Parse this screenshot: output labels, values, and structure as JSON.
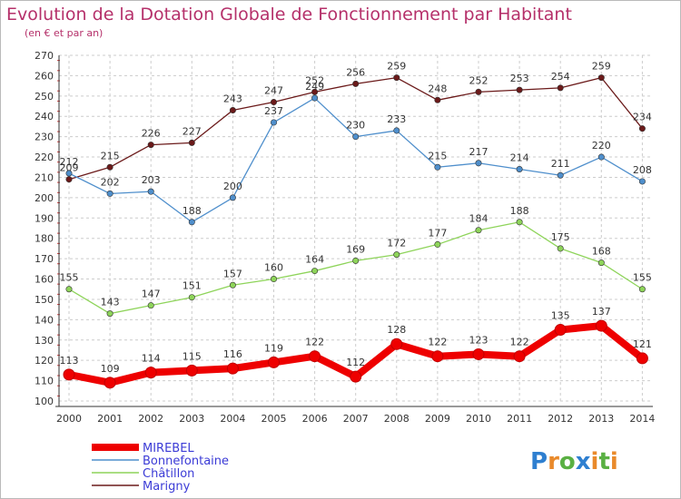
{
  "chart_data": {
    "type": "line",
    "title": "Evolution de la Dotation Globale de Fonctionnement par Habitant",
    "subtitle": "(en € et par an)",
    "xlabel": "",
    "ylabel": "",
    "x": [
      "2000",
      "2001",
      "2002",
      "2003",
      "2004",
      "2005",
      "2006",
      "2007",
      "2008",
      "2009",
      "2010",
      "2011",
      "2012",
      "2013",
      "2014"
    ],
    "ylim": [
      100,
      270
    ],
    "yticks": [
      100,
      110,
      120,
      130,
      140,
      150,
      160,
      170,
      180,
      190,
      200,
      210,
      220,
      230,
      240,
      250,
      260,
      270
    ],
    "grid": true,
    "legend_position": "bottom-left",
    "series": [
      {
        "name": "Marigny",
        "color": "#6b1a1a",
        "values": [
          209,
          215,
          226,
          227,
          243,
          247,
          252,
          256,
          259,
          248,
          252,
          253,
          254,
          259,
          234
        ]
      },
      {
        "name": "Bonnefontaine",
        "color": "#4f8fcc",
        "values": [
          212,
          202,
          203,
          188,
          200,
          237,
          249,
          230,
          233,
          215,
          217,
          214,
          211,
          220,
          208
        ]
      },
      {
        "name": "Châtillon",
        "color": "#8ed45a",
        "values": [
          155,
          143,
          147,
          151,
          157,
          160,
          164,
          169,
          172,
          177,
          184,
          188,
          175,
          168,
          155
        ]
      },
      {
        "name": "MIREBEL",
        "color": "#ee0000",
        "values": [
          113,
          109,
          114,
          115,
          116,
          119,
          122,
          112,
          128,
          122,
          123,
          122,
          135,
          137,
          121
        ]
      }
    ],
    "legend_order": [
      "MIREBEL",
      "Bonnefontaine",
      "Châtillon",
      "Marigny"
    ]
  },
  "brand": {
    "logo_text": "Proxiti"
  }
}
